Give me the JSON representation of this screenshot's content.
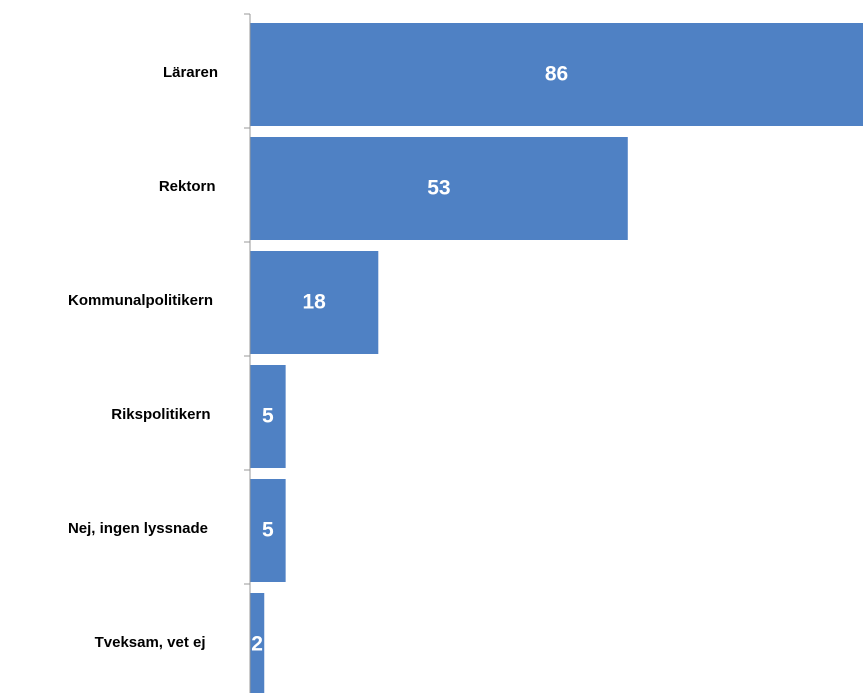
{
  "chart_data": {
    "type": "barh",
    "categories": [
      "Läraren",
      "Rektorn",
      "Kommunalpolitikern",
      "Rikspolitikern",
      "Nej,  ingen lyssnade",
      "Tveksam, vet ej"
    ],
    "values": [
      86,
      53,
      18,
      5,
      5,
      2
    ],
    "color": "#4f81c4"
  }
}
